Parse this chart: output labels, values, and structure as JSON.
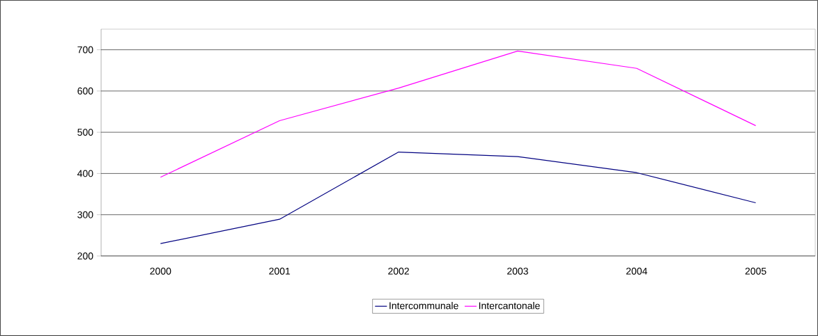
{
  "chart_data": {
    "type": "line",
    "categories": [
      "2000",
      "2001",
      "2002",
      "2003",
      "2004",
      "2005"
    ],
    "series": [
      {
        "name": "Intercommunale",
        "color": "#000080",
        "values": [
          230,
          289,
          452,
          441,
          402,
          329
        ]
      },
      {
        "name": "Intercantonale",
        "color": "#ff00ff",
        "values": [
          391,
          528,
          607,
          697,
          655,
          516
        ]
      }
    ],
    "ylim": [
      200,
      750
    ],
    "yticks": [
      200,
      300,
      400,
      500,
      600,
      700
    ],
    "grid": "y",
    "legend": "bottom",
    "marker": "none",
    "line_style": "solid"
  }
}
